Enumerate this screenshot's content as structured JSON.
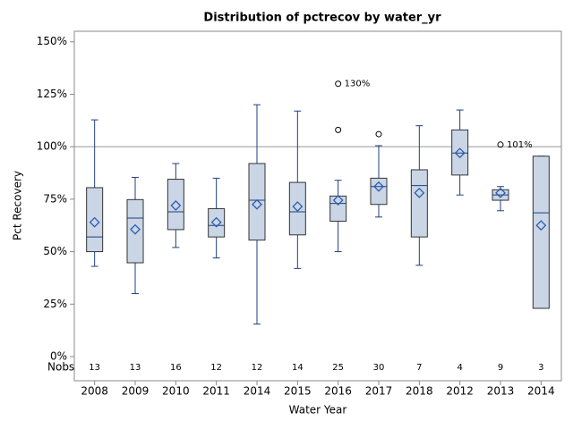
{
  "chart_data": {
    "type": "box",
    "title": "Distribution of pctrecov by water_yr",
    "x_label": "Water Year",
    "y_label": "Pct Recovery",
    "nobs_label": "Nobs",
    "categories": [
      "2008",
      "2009",
      "2010",
      "2011",
      "2014",
      "2015",
      "2016",
      "2017",
      "2018",
      "2012",
      "2013",
      "2014"
    ],
    "min": [
      43,
      30,
      52,
      47,
      15.5,
      42,
      50,
      66.5,
      43.5,
      77,
      69.5,
      23
    ],
    "q1": [
      50,
      44.7,
      60.5,
      57,
      55.5,
      58,
      64.5,
      72.5,
      57,
      86.5,
      74.5,
      23
    ],
    "median": [
      57,
      66,
      69,
      62.5,
      74.5,
      69,
      73,
      81,
      81.5,
      97,
      77,
      68.5
    ],
    "q3": [
      80.5,
      74.8,
      84.5,
      70.5,
      92,
      83,
      76.5,
      85,
      89,
      108,
      79.5,
      95.5
    ],
    "max": [
      112.8,
      85.4,
      92,
      85,
      120,
      117,
      84,
      100.5,
      110,
      117.5,
      81,
      95.5
    ],
    "mean": [
      64,
      60.6,
      72,
      64,
      72.5,
      71.5,
      74.5,
      81,
      78,
      97,
      78,
      62.5
    ],
    "outliers": [
      [],
      [],
      [],
      [],
      [],
      [],
      [
        108,
        {
          "value": 130,
          "label": "130%"
        }
      ],
      [
        106
      ],
      [],
      [],
      [
        {
          "value": 101,
          "label": "101%"
        }
      ],
      []
    ],
    "nobs": [
      13,
      13,
      16,
      12,
      12,
      14,
      25,
      30,
      7,
      4,
      9,
      3
    ],
    "reference_line": 100,
    "ylim": [
      -11.5,
      155
    ],
    "yticks": [
      {
        "value": 0,
        "label": "0%"
      },
      {
        "value": 25,
        "label": "25%"
      },
      {
        "value": 50,
        "label": "50%"
      },
      {
        "value": 75,
        "label": "75%"
      },
      {
        "value": 100,
        "label": "100%"
      },
      {
        "value": 125,
        "label": "125%"
      },
      {
        "value": 150,
        "label": "150%"
      }
    ],
    "box_color": "#cad5e5",
    "line_color": "#1f3f7f",
    "mean_color": "#2a5db0"
  }
}
